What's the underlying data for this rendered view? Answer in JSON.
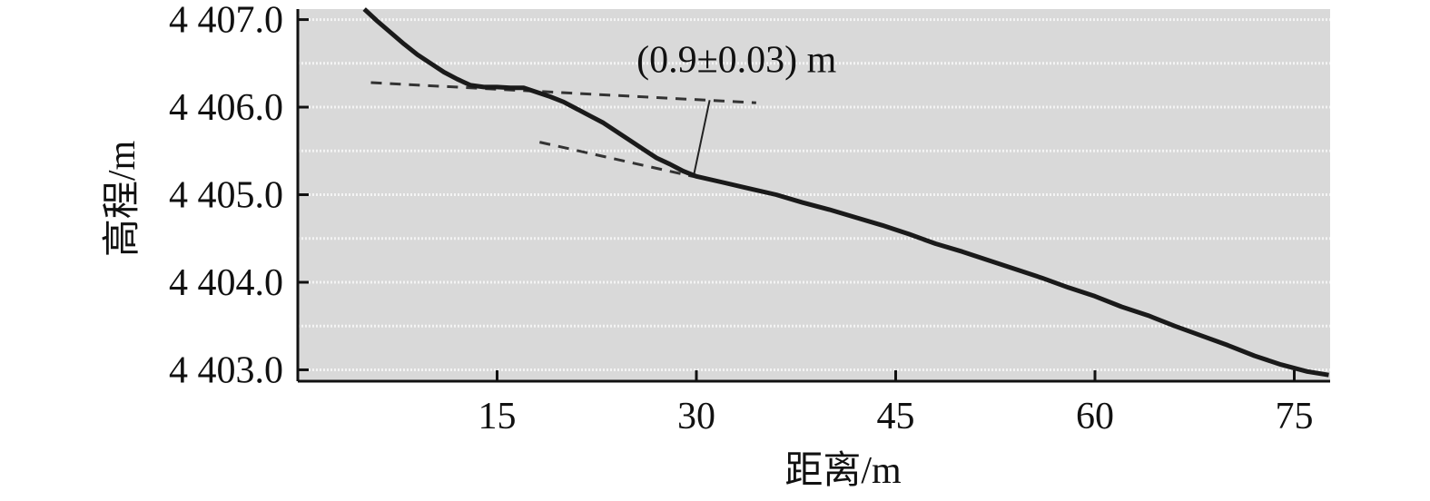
{
  "chart_data": {
    "type": "line",
    "title": "",
    "xlabel": "距离/m",
    "ylabel": "高程/m",
    "xlim": [
      0,
      77.7
    ],
    "ylim": [
      4402.87,
      4407.12
    ],
    "xticks": [
      15,
      30,
      45,
      60,
      75
    ],
    "xtick_labels": [
      "15",
      "30",
      "45",
      "60",
      "75"
    ],
    "yticks": [
      4403.0,
      4404.0,
      4405.0,
      4406.0,
      4407.0
    ],
    "ytick_labels": [
      "4 403.0",
      "4 404.0",
      "4 405.0",
      "4 406.0",
      "4 407.0"
    ],
    "grid": true,
    "background": "#d9d9d9",
    "line_color": "#1a1a1a",
    "series": [
      {
        "name": "",
        "x": [
          5.0,
          6.0,
          7.0,
          8.0,
          9.0,
          10.0,
          11.0,
          12.0,
          13.0,
          14.0,
          15.0,
          16.0,
          17.0,
          18.0,
          19.0,
          20.0,
          21.0,
          22.0,
          23.0,
          24.0,
          25.0,
          26.0,
          27.0,
          28.0,
          29.0,
          30.0,
          32.0,
          34.0,
          36.0,
          38.0,
          40.0,
          42.0,
          44.0,
          46.0,
          48.0,
          50.0,
          52.0,
          54.0,
          56.0,
          58.0,
          60.0,
          62.0,
          64.0,
          66.0,
          68.0,
          70.0,
          72.0,
          74.0,
          76.0,
          77.6
        ],
        "y": [
          4407.12,
          4406.98,
          4406.85,
          4406.72,
          4406.6,
          4406.5,
          4406.4,
          4406.32,
          4406.25,
          4406.23,
          4406.23,
          4406.22,
          4406.22,
          4406.17,
          4406.12,
          4406.06,
          4405.98,
          4405.9,
          4405.82,
          4405.72,
          4405.62,
          4405.52,
          4405.42,
          4405.35,
          4405.27,
          4405.21,
          4405.14,
          4405.07,
          4405.0,
          4404.91,
          4404.83,
          4404.74,
          4404.65,
          4404.55,
          4404.44,
          4404.35,
          4404.25,
          4404.15,
          4404.05,
          4403.94,
          4403.84,
          4403.72,
          4403.62,
          4403.5,
          4403.39,
          4403.28,
          4403.16,
          4403.06,
          4402.98,
          4402.94
        ]
      }
    ],
    "reference_lines": [
      {
        "x": [
          5.5,
          34.5
        ],
        "y": [
          4406.28,
          4406.05
        ]
      },
      {
        "x": [
          18.2,
          30.0
        ],
        "y": [
          4405.6,
          4405.2
        ]
      }
    ],
    "measure_line": {
      "x": [
        31.0,
        29.8
      ],
      "y": [
        4406.08,
        4405.22
      ]
    },
    "annotations": [
      {
        "text": "(0.9±0.03) m",
        "x": 25.5,
        "y": 4406.4
      }
    ]
  }
}
